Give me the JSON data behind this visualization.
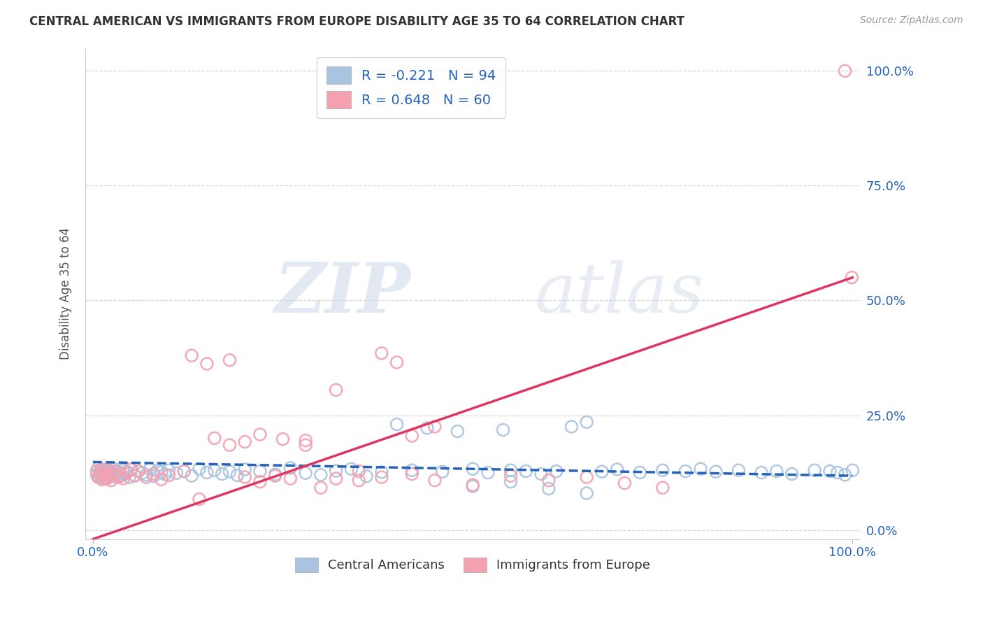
{
  "title": "CENTRAL AMERICAN VS IMMIGRANTS FROM EUROPE DISABILITY AGE 35 TO 64 CORRELATION CHART",
  "source": "Source: ZipAtlas.com",
  "ylabel": "Disability Age 35 to 64",
  "blue_R": -0.221,
  "blue_N": 94,
  "pink_R": 0.648,
  "pink_N": 60,
  "blue_color": "#a8c4e0",
  "pink_color": "#f4a0b0",
  "blue_line_color": "#2563b8",
  "pink_line_color": "#e03560",
  "watermark_zip": "ZIP",
  "watermark_atlas": "atlas",
  "background_color": "#ffffff",
  "grid_color": "#cccccc",
  "xlim": [
    -0.01,
    1.01
  ],
  "ylim": [
    -0.02,
    1.05
  ],
  "yticks": [
    0.0,
    0.25,
    0.5,
    0.75,
    1.0
  ],
  "ytick_labels": [
    "0.0%",
    "25.0%",
    "50.0%",
    "75.0%",
    "100.0%"
  ],
  "blue_x": [
    0.005,
    0.007,
    0.008,
    0.009,
    0.01,
    0.011,
    0.012,
    0.013,
    0.014,
    0.015,
    0.016,
    0.017,
    0.018,
    0.019,
    0.02,
    0.021,
    0.022,
    0.023,
    0.025,
    0.027,
    0.028,
    0.03,
    0.031,
    0.033,
    0.035,
    0.037,
    0.04,
    0.042,
    0.045,
    0.048,
    0.05,
    0.055,
    0.06,
    0.065,
    0.07,
    0.075,
    0.08,
    0.085,
    0.09,
    0.095,
    0.1,
    0.11,
    0.12,
    0.13,
    0.14,
    0.15,
    0.16,
    0.17,
    0.18,
    0.19,
    0.2,
    0.22,
    0.24,
    0.26,
    0.28,
    0.3,
    0.32,
    0.34,
    0.36,
    0.38,
    0.4,
    0.42,
    0.44,
    0.46,
    0.48,
    0.5,
    0.52,
    0.54,
    0.55,
    0.57,
    0.59,
    0.61,
    0.63,
    0.65,
    0.67,
    0.69,
    0.72,
    0.75,
    0.78,
    0.8,
    0.82,
    0.85,
    0.88,
    0.9,
    0.92,
    0.95,
    0.97,
    0.98,
    0.99,
    1.0,
    0.5,
    0.55,
    0.6,
    0.65
  ],
  "blue_y": [
    0.12,
    0.135,
    0.115,
    0.125,
    0.13,
    0.118,
    0.122,
    0.128,
    0.112,
    0.132,
    0.119,
    0.126,
    0.113,
    0.131,
    0.124,
    0.117,
    0.129,
    0.121,
    0.127,
    0.116,
    0.133,
    0.123,
    0.128,
    0.12,
    0.125,
    0.118,
    0.13,
    0.122,
    0.127,
    0.115,
    0.132,
    0.119,
    0.128,
    0.124,
    0.12,
    0.133,
    0.117,
    0.129,
    0.126,
    0.121,
    0.13,
    0.124,
    0.128,
    0.118,
    0.133,
    0.125,
    0.13,
    0.122,
    0.127,
    0.119,
    0.132,
    0.128,
    0.121,
    0.135,
    0.124,
    0.12,
    0.129,
    0.133,
    0.117,
    0.126,
    0.23,
    0.13,
    0.222,
    0.127,
    0.215,
    0.133,
    0.125,
    0.218,
    0.13,
    0.128,
    0.122,
    0.128,
    0.225,
    0.235,
    0.127,
    0.132,
    0.125,
    0.13,
    0.128,
    0.133,
    0.127,
    0.13,
    0.125,
    0.128,
    0.122,
    0.13,
    0.128,
    0.125,
    0.12,
    0.13,
    0.095,
    0.105,
    0.09,
    0.08
  ],
  "pink_x": [
    0.005,
    0.007,
    0.009,
    0.011,
    0.012,
    0.014,
    0.016,
    0.018,
    0.02,
    0.022,
    0.024,
    0.027,
    0.03,
    0.033,
    0.037,
    0.04,
    0.045,
    0.05,
    0.055,
    0.06,
    0.07,
    0.08,
    0.09,
    0.1,
    0.12,
    0.14,
    0.16,
    0.18,
    0.2,
    0.22,
    0.24,
    0.26,
    0.28,
    0.3,
    0.32,
    0.35,
    0.38,
    0.4,
    0.42,
    0.45,
    0.18,
    0.2,
    0.22,
    0.13,
    0.15,
    0.25,
    0.28,
    0.32,
    0.35,
    0.38,
    0.42,
    0.45,
    0.5,
    0.55,
    0.6,
    0.65,
    0.7,
    0.75,
    0.99,
    0.999
  ],
  "pink_y": [
    0.128,
    0.115,
    0.122,
    0.132,
    0.11,
    0.119,
    0.125,
    0.112,
    0.13,
    0.118,
    0.108,
    0.121,
    0.128,
    0.115,
    0.119,
    0.112,
    0.125,
    0.132,
    0.118,
    0.128,
    0.115,
    0.122,
    0.11,
    0.119,
    0.128,
    0.067,
    0.2,
    0.185,
    0.115,
    0.208,
    0.118,
    0.112,
    0.195,
    0.092,
    0.305,
    0.128,
    0.385,
    0.365,
    0.205,
    0.225,
    0.37,
    0.192,
    0.105,
    0.38,
    0.362,
    0.198,
    0.185,
    0.112,
    0.108,
    0.115,
    0.122,
    0.108,
    0.098,
    0.118,
    0.108,
    0.115,
    0.102,
    0.092,
    1.0,
    0.55
  ],
  "blue_line_x": [
    0.0,
    1.0
  ],
  "blue_line_y": [
    0.148,
    0.118
  ],
  "pink_line_x": [
    0.0,
    1.0
  ],
  "pink_line_y": [
    -0.02,
    0.55
  ],
  "legend_R_label1": "R = -0.221   N = 94",
  "legend_R_label2": "R = 0.648   N = 60",
  "legend_bottom_label1": "Central Americans",
  "legend_bottom_label2": "Immigrants from Europe"
}
